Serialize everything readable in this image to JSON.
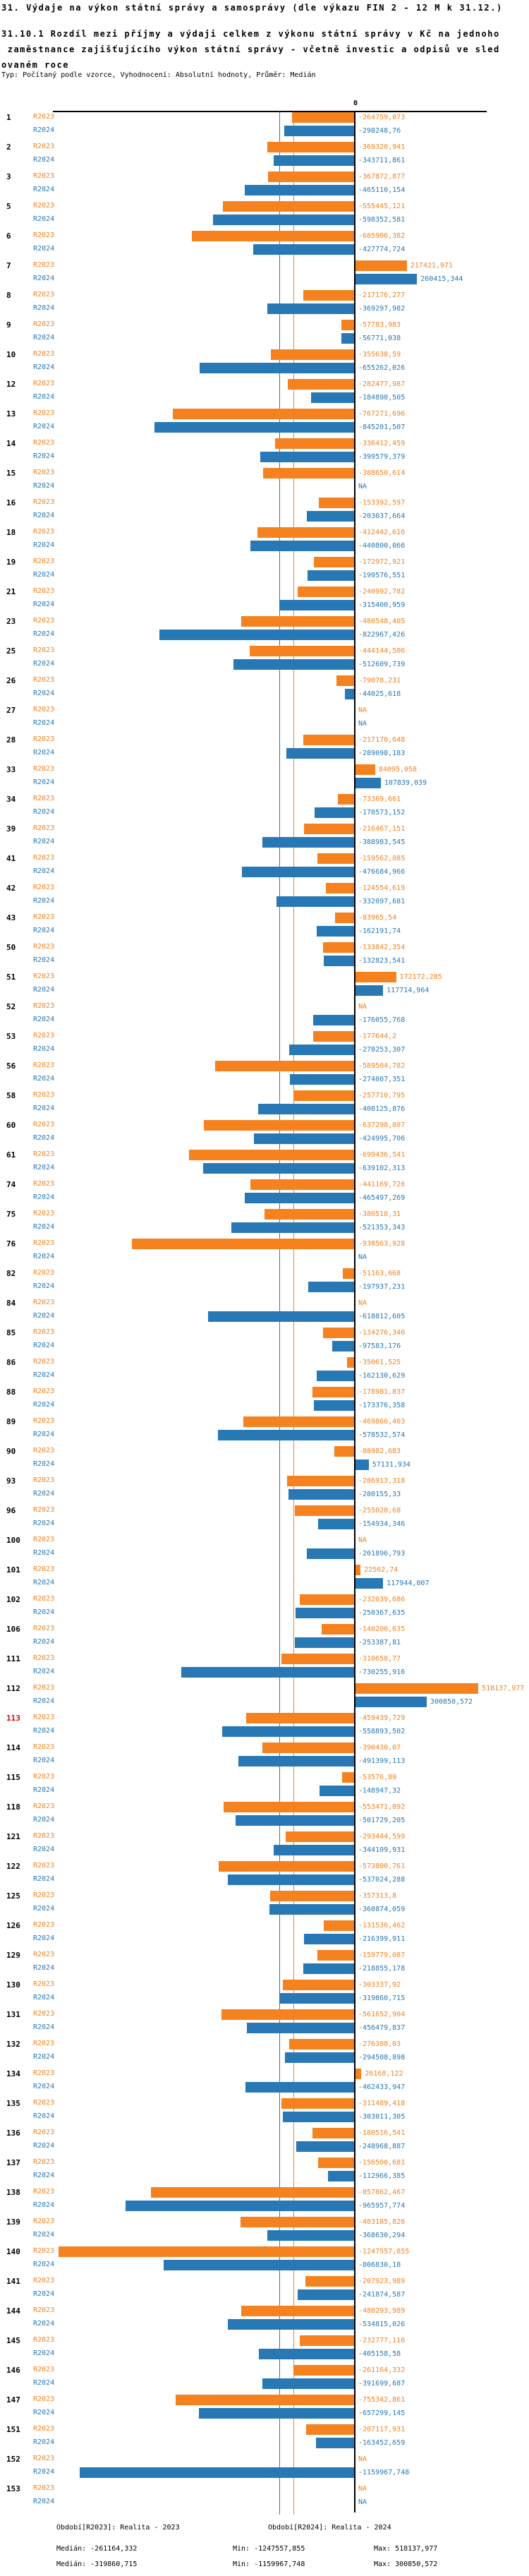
{
  "header": {
    "title": "31. Výdaje na výkon státní správy a samosprávy (dle výkazu FIN 2 - 12 M k 31.12.)",
    "subtitle_lines": [
      "31.10.1 Rozdíl mezi příjmy a výdaji celkem z výkonu státní správy v Kč na jednoho",
      " zaměstnance zajišťujícího výkon státní správy - včetně investic a odpisů ve sled",
      "ovaném roce"
    ],
    "meta": "Typ: Počítaný podle vzorce, Vyhodnocení: Absolutní hodnoty, Průměr: Medián"
  },
  "axis": {
    "zero_label": "0"
  },
  "legend": {
    "r2023": "Období[R2023]: Realita - 2023",
    "r2024": "Období[R2024]: Realita - 2024"
  },
  "stats": {
    "r2023": {
      "median": "Medián: -261164,332",
      "min": "Min: -1247557,855",
      "max": "Max: 518137,977"
    },
    "r2024": {
      "median": "Medián: -319860,715",
      "min": "Min: -1159967,748",
      "max": "Max: 300850,572"
    }
  },
  "colors": {
    "r2023": "#f5821e",
    "r2024": "#2878b5",
    "row_number": "#000000",
    "highlight_row_number": "#e60000"
  },
  "chart_data": {
    "type": "bar",
    "orientation": "horizontal",
    "series": [
      "R2023",
      "R2024"
    ],
    "value_unit": "Kč",
    "decimal_separator": ",",
    "na_label": "NA",
    "median_r2023": -261164.332,
    "median_r2024": -319860.715,
    "min_r2023": -1247557.855,
    "max_r2023": 518137.977,
    "min_r2024": -1159967.748,
    "max_r2024": 300850.572,
    "rows": [
      {
        "id": "1",
        "r2023": -264759.073,
        "r2024": -298248.76
      },
      {
        "id": "2",
        "r2023": -369320.941,
        "r2024": -343711.861
      },
      {
        "id": "3",
        "r2023": -367872.877,
        "r2024": -465110.154
      },
      {
        "id": "5",
        "r2023": -555445.121,
        "r2024": -598352.581
      },
      {
        "id": "6",
        "r2023": -685906.382,
        "r2024": -427774.724
      },
      {
        "id": "7",
        "r2023": 217421.971,
        "r2024": 260415.344
      },
      {
        "id": "8",
        "r2023": -217176.277,
        "r2024": -369297.982
      },
      {
        "id": "9",
        "r2023": -57783.983,
        "r2024": -56771.038
      },
      {
        "id": "10",
        "r2023": -355638.59,
        "r2024": -655262.026
      },
      {
        "id": "12",
        "r2023": -282477.987,
        "r2024": -184890.505
      },
      {
        "id": "13",
        "r2023": -767271.696,
        "r2024": -845201.507
      },
      {
        "id": "14",
        "r2023": -336412.459,
        "r2024": -399579.379
      },
      {
        "id": "15",
        "r2023": -388650.614,
        "r2024": null
      },
      {
        "id": "16",
        "r2023": -153392.597,
        "r2024": -203037.664
      },
      {
        "id": "18",
        "r2023": -412442.616,
        "r2024": -440800.066
      },
      {
        "id": "19",
        "r2023": -172972.921,
        "r2024": -199576.551
      },
      {
        "id": "21",
        "r2023": -240992.782,
        "r2024": -315400.959
      },
      {
        "id": "23",
        "r2023": -480548.405,
        "r2024": -822967.426
      },
      {
        "id": "25",
        "r2023": -444144.506,
        "r2024": -512609.739
      },
      {
        "id": "26",
        "r2023": -79078.231,
        "r2024": -44025.618
      },
      {
        "id": "27",
        "r2023": null,
        "r2024": null
      },
      {
        "id": "28",
        "r2023": -217170.648,
        "r2024": -289098.183
      },
      {
        "id": "33",
        "r2023": 84095.058,
        "r2024": 107839.039
      },
      {
        "id": "34",
        "r2023": -73369.661,
        "r2024": -170573.152
      },
      {
        "id": "39",
        "r2023": -216467.151,
        "r2024": -388983.545
      },
      {
        "id": "41",
        "r2023": -159562.085,
        "r2024": -476684.966
      },
      {
        "id": "42",
        "r2023": -124554.619,
        "r2024": -332097.681
      },
      {
        "id": "43",
        "r2023": -83965.54,
        "r2024": -162191.74
      },
      {
        "id": "50",
        "r2023": -133842.354,
        "r2024": -132823.541
      },
      {
        "id": "51",
        "r2023": 172172.285,
        "r2024": 117714.964
      },
      {
        "id": "52",
        "r2023": null,
        "r2024": -176055.768
      },
      {
        "id": "53",
        "r2023": -177644.2,
        "r2024": -278253.307
      },
      {
        "id": "56",
        "r2023": -589504.782,
        "r2024": -274007.351
      },
      {
        "id": "58",
        "r2023": -257710.795,
        "r2024": -408125.876
      },
      {
        "id": "60",
        "r2023": -637298.807,
        "r2024": -424995.706
      },
      {
        "id": "61",
        "r2023": -699436.541,
        "r2024": -639102.313
      },
      {
        "id": "74",
        "r2023": -441169.726,
        "r2024": -465497.269
      },
      {
        "id": "75",
        "r2023": -380518.31,
        "r2024": -521353.343
      },
      {
        "id": "76",
        "r2023": -938563.928,
        "r2024": null
      },
      {
        "id": "82",
        "r2023": -51163.668,
        "r2024": -197937.231
      },
      {
        "id": "84",
        "r2023": null,
        "r2024": -618812.605
      },
      {
        "id": "85",
        "r2023": -134276.346,
        "r2024": -97583.176
      },
      {
        "id": "86",
        "r2023": -35061.525,
        "r2024": -162130.629
      },
      {
        "id": "88",
        "r2023": -178981.837,
        "r2024": -173376.358
      },
      {
        "id": "89",
        "r2023": -469866.403,
        "r2024": -578532.574
      },
      {
        "id": "90",
        "r2023": -88982.683,
        "r2024": 57131.934
      },
      {
        "id": "93",
        "r2023": -286913.318,
        "r2024": -280155.33
      },
      {
        "id": "96",
        "r2023": -255028.68,
        "r2024": -154934.346
      },
      {
        "id": "100",
        "r2023": null,
        "r2024": -201896.793
      },
      {
        "id": "101",
        "r2023": 22562.74,
        "r2024": 117944.007
      },
      {
        "id": "102",
        "r2023": -232039.686,
        "r2024": -250367.635
      },
      {
        "id": "106",
        "r2023": -140200.635,
        "r2024": -253387.81
      },
      {
        "id": "111",
        "r2023": -310658.77,
        "r2024": -730255.916
      },
      {
        "id": "112",
        "r2023": 518137.977,
        "r2024": 300850.572
      },
      {
        "id": "113",
        "r2023": -459439.729,
        "r2024": -558893.502,
        "highlight": true
      },
      {
        "id": "114",
        "r2023": -390430.07,
        "r2024": -491399.113
      },
      {
        "id": "115",
        "r2023": -53576.89,
        "r2024": -148947.32
      },
      {
        "id": "118",
        "r2023": -553471.092,
        "r2024": -501729.205
      },
      {
        "id": "121",
        "r2023": -293444.599,
        "r2024": -344109.931
      },
      {
        "id": "122",
        "r2023": -573800.761,
        "r2024": -537024.288
      },
      {
        "id": "125",
        "r2023": -357313.8,
        "r2024": -360874.059
      },
      {
        "id": "126",
        "r2023": -131536.462,
        "r2024": -216399.911
      },
      {
        "id": "129",
        "r2023": -159779.087,
        "r2024": -218855.178
      },
      {
        "id": "130",
        "r2023": -303337.92,
        "r2024": -319860.715
      },
      {
        "id": "131",
        "r2023": -561652.904,
        "r2024": -456479.837
      },
      {
        "id": "132",
        "r2023": -276388.03,
        "r2024": -294508.898
      },
      {
        "id": "134",
        "r2023": 26168.122,
        "r2024": -462433.947
      },
      {
        "id": "135",
        "r2023": -311489.418,
        "r2024": -303011.305
      },
      {
        "id": "136",
        "r2023": -180516.541,
        "r2024": -248968.887
      },
      {
        "id": "137",
        "r2023": -156500.681,
        "r2024": -112966.385
      },
      {
        "id": "138",
        "r2023": -857862.467,
        "r2024": -965957.774
      },
      {
        "id": "139",
        "r2023": -483185.826,
        "r2024": -368630.294
      },
      {
        "id": "140",
        "r2023": -1247557.855,
        "r2024": -806830.18
      },
      {
        "id": "141",
        "r2023": -207923.989,
        "r2024": -241874.587
      },
      {
        "id": "144",
        "r2023": -480293.989,
        "r2024": -534815.026
      },
      {
        "id": "145",
        "r2023": -232777.116,
        "r2024": -405158.58
      },
      {
        "id": "146",
        "r2023": -261164.332,
        "r2024": -391699.687
      },
      {
        "id": "147",
        "r2023": -755342.861,
        "r2024": -657299.145
      },
      {
        "id": "151",
        "r2023": -207117.931,
        "r2024": -163452.659
      },
      {
        "id": "152",
        "r2023": null,
        "r2024": -1159967.748
      },
      {
        "id": "153",
        "r2023": null,
        "r2024": null
      }
    ]
  }
}
